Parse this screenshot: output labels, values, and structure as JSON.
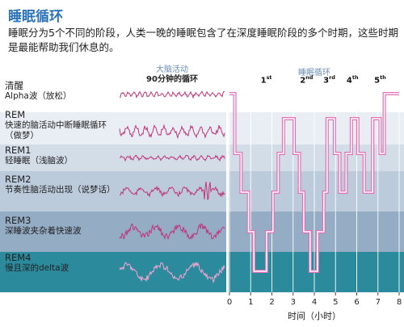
{
  "title": "睡眠循环",
  "intro": "睡眠分为5个不同的阶段，人类一晚的睡眠包含了在深度睡眠阶段的多个时期，这些时期是最能帮助我们休息的。",
  "left_header": {
    "sub": "大脑活动",
    "main": "90分钟的循环"
  },
  "right_header": "睡眠循环",
  "stages": [
    {
      "name": "清醒",
      "desc": "Alpha波（放松）",
      "color": "#ffffff"
    },
    {
      "name": "REM",
      "desc": "快速的脑活动中断睡眠循环（做梦）",
      "color": "#e8eef4"
    },
    {
      "name": "REM1",
      "desc": "轻睡眠（浅脑波）",
      "color": "#d3dde8"
    },
    {
      "name": "REM2",
      "desc": "节奏性脑活动出现（说梦话）",
      "color": "#bccbdb"
    },
    {
      "name": "REM3",
      "desc": "深睡波夹杂着快速波",
      "color": "#94acc4"
    },
    {
      "name": "REM4",
      "desc": "慢且深的delta波",
      "color": "#2b8a9c"
    }
  ],
  "cycles": [
    {
      "n": "1",
      "suffix": "st",
      "at": 1.7
    },
    {
      "n": "2",
      "suffix": "nd",
      "at": 3.55
    },
    {
      "n": "3",
      "suffix": "rd",
      "at": 4.65
    },
    {
      "n": "4",
      "suffix": "th",
      "at": 5.75
    },
    {
      "n": "5",
      "suffix": "th",
      "at": 7.05
    }
  ],
  "chart_data": {
    "type": "line",
    "xlabel": "时间（小时）",
    "xlim": [
      0,
      8
    ],
    "ticks": [
      "0",
      "1",
      "2",
      "3",
      "4",
      "5",
      "6",
      "7",
      "8"
    ],
    "levels": [
      "清醒",
      "REM",
      "REM1",
      "REM2",
      "REM3",
      "REM4"
    ],
    "hypnogram": [
      [
        0,
        0
      ],
      [
        0.25,
        0
      ],
      [
        0.25,
        2
      ],
      [
        0.55,
        2
      ],
      [
        0.55,
        3
      ],
      [
        0.9,
        3
      ],
      [
        0.9,
        4
      ],
      [
        1.15,
        4
      ],
      [
        1.15,
        5
      ],
      [
        1.75,
        5
      ],
      [
        1.75,
        4
      ],
      [
        2.05,
        4
      ],
      [
        2.05,
        3
      ],
      [
        2.3,
        3
      ],
      [
        2.3,
        2
      ],
      [
        2.55,
        2
      ],
      [
        2.55,
        1
      ],
      [
        3.05,
        1
      ],
      [
        3.05,
        2
      ],
      [
        3.3,
        2
      ],
      [
        3.3,
        3
      ],
      [
        3.5,
        3
      ],
      [
        3.5,
        4
      ],
      [
        3.8,
        4
      ],
      [
        3.8,
        5
      ],
      [
        4.15,
        5
      ],
      [
        4.15,
        4
      ],
      [
        4.45,
        4
      ],
      [
        4.45,
        3
      ],
      [
        4.6,
        3
      ],
      [
        4.6,
        1
      ],
      [
        4.95,
        1
      ],
      [
        4.95,
        2
      ],
      [
        5.2,
        2
      ],
      [
        5.2,
        3
      ],
      [
        5.5,
        3
      ],
      [
        5.5,
        2
      ],
      [
        5.75,
        2
      ],
      [
        5.75,
        1
      ],
      [
        6.05,
        1
      ],
      [
        6.05,
        2
      ],
      [
        6.35,
        2
      ],
      [
        6.35,
        3
      ],
      [
        6.75,
        3
      ],
      [
        6.75,
        1
      ],
      [
        7.1,
        1
      ],
      [
        7.1,
        2
      ],
      [
        7.3,
        2
      ],
      [
        7.3,
        0
      ],
      [
        8,
        0
      ]
    ]
  }
}
